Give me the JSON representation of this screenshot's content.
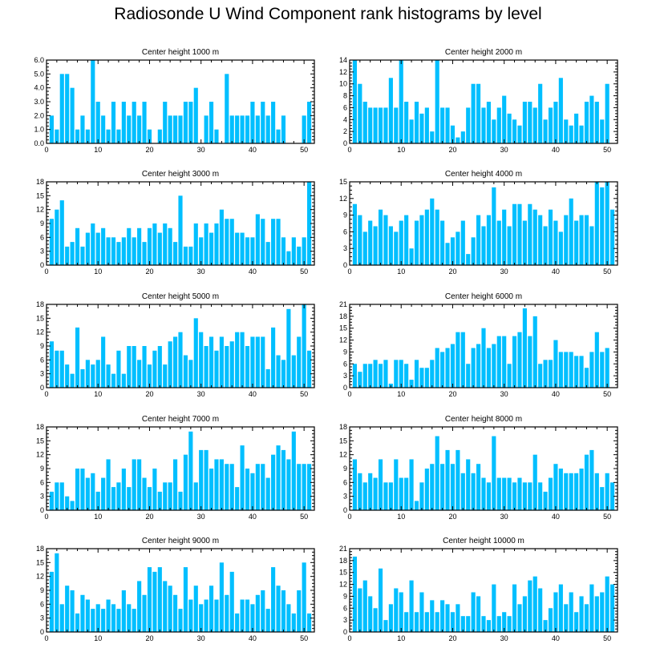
{
  "figure_title": "Radiosonde U Wind Component rank histograms by level",
  "chart_data": [
    {
      "type": "bar",
      "title": "Center height 1000 m",
      "xlim": [
        0,
        52
      ],
      "ylim": [
        0,
        6
      ],
      "yticks": [
        0,
        1,
        2,
        3,
        4,
        5,
        6
      ],
      "ytick_labels": [
        "0.0",
        "1.0",
        "2.0",
        "3.0",
        "4.0",
        "5.0",
        "6.0"
      ],
      "xticks": [
        0,
        10,
        20,
        30,
        40,
        50
      ],
      "values": [
        2,
        1,
        5,
        5,
        4,
        1,
        2,
        1,
        6,
        3,
        2,
        1,
        3,
        1,
        3,
        2,
        3,
        2,
        3,
        1,
        0,
        1,
        3,
        2,
        2,
        2,
        3,
        3,
        4,
        0,
        2,
        3,
        1,
        0,
        5,
        2,
        2,
        2,
        2,
        3,
        2,
        3,
        2,
        3,
        1,
        2,
        0,
        0,
        0,
        2,
        3
      ]
    },
    {
      "type": "bar",
      "title": "Center height 2000 m",
      "xlim": [
        0,
        52
      ],
      "ylim": [
        0,
        14
      ],
      "yticks": [
        0,
        2,
        4,
        6,
        8,
        10,
        12,
        14
      ],
      "ytick_labels": [
        "0",
        "2",
        "4",
        "6",
        "8",
        "10",
        "12",
        "14"
      ],
      "xticks": [
        0,
        10,
        20,
        30,
        40,
        50
      ],
      "values": [
        14,
        10,
        7,
        6,
        6,
        6,
        6,
        11,
        6,
        14,
        7,
        4,
        7,
        5,
        6,
        2,
        14,
        6,
        6,
        3,
        1,
        2,
        6,
        10,
        10,
        6,
        7,
        4,
        6,
        8,
        5,
        4,
        3,
        7,
        7,
        6,
        10,
        4,
        6,
        7,
        11,
        4,
        3,
        5,
        3,
        7,
        8,
        7,
        4,
        10,
        0
      ]
    },
    {
      "type": "bar",
      "title": "Center height 3000 m",
      "xlim": [
        0,
        52
      ],
      "ylim": [
        0,
        18
      ],
      "yticks": [
        0,
        3,
        6,
        9,
        12,
        15,
        18
      ],
      "ytick_labels": [
        "0",
        "3",
        "6",
        "9",
        "12",
        "15",
        "18"
      ],
      "xticks": [
        0,
        10,
        20,
        30,
        40,
        50
      ],
      "values": [
        10,
        12,
        14,
        4,
        5,
        8,
        4,
        7,
        9,
        7,
        8,
        6,
        6,
        5,
        6,
        8,
        6,
        8,
        5,
        8,
        9,
        7,
        9,
        8,
        5,
        15,
        4,
        4,
        9,
        6,
        9,
        7,
        9,
        12,
        10,
        10,
        7,
        7,
        6,
        6,
        11,
        10,
        5,
        10,
        10,
        6,
        3,
        6,
        4,
        6,
        18
      ]
    },
    {
      "type": "bar",
      "title": "Center height 4000 m",
      "xlim": [
        0,
        52
      ],
      "ylim": [
        0,
        15
      ],
      "yticks": [
        0,
        3,
        6,
        9,
        12,
        15
      ],
      "ytick_labels": [
        "0",
        "3",
        "6",
        "9",
        "12",
        "15"
      ],
      "xticks": [
        0,
        10,
        20,
        30,
        40,
        50
      ],
      "values": [
        11,
        9,
        6,
        8,
        7,
        10,
        9,
        7,
        6,
        8,
        9,
        3,
        8,
        9,
        10,
        12,
        10,
        8,
        4,
        5,
        6,
        8,
        2,
        5,
        9,
        7,
        9,
        14,
        8,
        10,
        7,
        11,
        11,
        8,
        11,
        10,
        9,
        7,
        10,
        8,
        6,
        9,
        12,
        8,
        9,
        9,
        7,
        15,
        14,
        15,
        10
      ]
    },
    {
      "type": "bar",
      "title": "Center height 5000 m",
      "xlim": [
        0,
        52
      ],
      "ylim": [
        0,
        18
      ],
      "yticks": [
        0,
        3,
        6,
        9,
        12,
        15,
        18
      ],
      "ytick_labels": [
        "0",
        "3",
        "6",
        "9",
        "12",
        "15",
        "18"
      ],
      "xticks": [
        0,
        10,
        20,
        30,
        40,
        50
      ],
      "values": [
        10,
        8,
        8,
        5,
        3,
        13,
        4,
        6,
        5,
        6,
        11,
        5,
        3,
        8,
        3,
        9,
        9,
        6,
        9,
        5,
        8,
        9,
        5,
        10,
        11,
        12,
        7,
        6,
        15,
        12,
        9,
        11,
        8,
        11,
        9,
        10,
        12,
        12,
        9,
        11,
        11,
        11,
        4,
        13,
        7,
        6,
        17,
        7,
        11,
        18,
        8
      ]
    },
    {
      "type": "bar",
      "title": "Center height 6000 m",
      "xlim": [
        0,
        52
      ],
      "ylim": [
        0,
        21
      ],
      "yticks": [
        0,
        3,
        6,
        9,
        12,
        15,
        18,
        21
      ],
      "ytick_labels": [
        "0",
        "3",
        "6",
        "9",
        "12",
        "15",
        "18",
        "21"
      ],
      "xticks": [
        0,
        10,
        20,
        30,
        40,
        50
      ],
      "values": [
        6,
        4,
        6,
        6,
        7,
        6,
        7,
        1,
        7,
        7,
        6,
        2,
        7,
        5,
        5,
        7,
        10,
        9,
        10,
        11,
        14,
        14,
        6,
        10,
        11,
        15,
        10,
        11,
        13,
        13,
        6,
        13,
        14,
        20,
        13,
        18,
        6,
        7,
        7,
        12,
        9,
        9,
        9,
        8,
        8,
        5,
        9,
        14,
        9,
        10,
        0
      ]
    },
    {
      "type": "bar",
      "title": "Center height 7000 m",
      "xlim": [
        0,
        52
      ],
      "ylim": [
        0,
        18
      ],
      "yticks": [
        0,
        3,
        6,
        9,
        12,
        15,
        18
      ],
      "ytick_labels": [
        "0",
        "3",
        "6",
        "9",
        "12",
        "15",
        "18"
      ],
      "xticks": [
        0,
        10,
        20,
        30,
        40,
        50
      ],
      "values": [
        4,
        6,
        6,
        3,
        2,
        9,
        9,
        7,
        8,
        4,
        7,
        11,
        5,
        6,
        9,
        5,
        11,
        11,
        7,
        5,
        9,
        4,
        6,
        6,
        11,
        4,
        12,
        17,
        6,
        13,
        13,
        9,
        11,
        11,
        10,
        10,
        5,
        14,
        9,
        8,
        10,
        10,
        7,
        12,
        14,
        13,
        11,
        17,
        10,
        10,
        10
      ]
    },
    {
      "type": "bar",
      "title": "Center height 8000 m",
      "xlim": [
        0,
        52
      ],
      "ylim": [
        0,
        18
      ],
      "yticks": [
        0,
        3,
        6,
        9,
        12,
        15,
        18
      ],
      "ytick_labels": [
        "0",
        "3",
        "6",
        "9",
        "12",
        "15",
        "18"
      ],
      "xticks": [
        0,
        10,
        20,
        30,
        40,
        50
      ],
      "values": [
        11,
        8,
        6,
        8,
        7,
        11,
        6,
        6,
        11,
        7,
        7,
        11,
        2,
        6,
        9,
        10,
        16,
        10,
        13,
        10,
        13,
        8,
        11,
        8,
        10,
        7,
        6,
        16,
        7,
        7,
        7,
        6,
        7,
        6,
        6,
        12,
        6,
        4,
        7,
        10,
        9,
        8,
        8,
        8,
        9,
        12,
        13,
        8,
        5,
        8,
        6
      ]
    },
    {
      "type": "bar",
      "title": "Center height 9000 m",
      "xlim": [
        0,
        52
      ],
      "ylim": [
        0,
        18
      ],
      "yticks": [
        0,
        3,
        6,
        9,
        12,
        15,
        18
      ],
      "ytick_labels": [
        "0",
        "3",
        "6",
        "9",
        "12",
        "15",
        "18"
      ],
      "xticks": [
        0,
        10,
        20,
        30,
        40,
        50
      ],
      "values": [
        13,
        17,
        6,
        10,
        9,
        4,
        8,
        7,
        5,
        6,
        5,
        7,
        6,
        5,
        9,
        6,
        5,
        11,
        8,
        14,
        13,
        14,
        11,
        10,
        8,
        5,
        14,
        7,
        10,
        6,
        7,
        10,
        7,
        15,
        8,
        13,
        4,
        7,
        7,
        6,
        8,
        9,
        5,
        14,
        10,
        9,
        6,
        4,
        9,
        15,
        4
      ]
    },
    {
      "type": "bar",
      "title": "Center height 10000 m",
      "xlim": [
        0,
        52
      ],
      "ylim": [
        0,
        21
      ],
      "yticks": [
        0,
        3,
        6,
        9,
        12,
        15,
        18,
        21
      ],
      "ytick_labels": [
        "0",
        "3",
        "6",
        "9",
        "12",
        "15",
        "18",
        "21"
      ],
      "xticks": [
        0,
        10,
        20,
        30,
        40,
        50
      ],
      "values": [
        19,
        11,
        13,
        9,
        6,
        16,
        3,
        7,
        11,
        10,
        5,
        13,
        5,
        10,
        5,
        8,
        5,
        8,
        7,
        5,
        7,
        4,
        4,
        10,
        9,
        4,
        3,
        12,
        4,
        5,
        4,
        12,
        7,
        9,
        13,
        14,
        11,
        3,
        6,
        10,
        12,
        7,
        10,
        5,
        9,
        7,
        12,
        9,
        10,
        14,
        12
      ]
    }
  ]
}
